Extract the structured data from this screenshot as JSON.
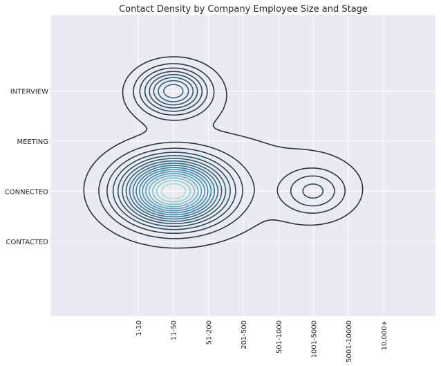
{
  "chart_data": {
    "type": "contour",
    "title": "Contact Density by Company Employee Size and Stage",
    "xlabel": "",
    "ylabel": "",
    "x_categories": [
      "1-10",
      "11-50",
      "51-200",
      "201-500",
      "501-1000",
      "1001-5000",
      "5001-10000",
      "10,000+"
    ],
    "y_categories": [
      "CONTACTED",
      "CONNECTED",
      "MEETING",
      "INTERVIEW"
    ],
    "grid": true,
    "background": "#eaeaf2",
    "colormap": [
      "#2b2f3a",
      "#2e5a70",
      "#3a8db3",
      "#a6dccb"
    ],
    "contour_levels": 17,
    "density_peaks": [
      {
        "x": "11-50",
        "y": "CONNECTED",
        "weight": 1.0
      },
      {
        "x": "11-50",
        "y": "INTERVIEW",
        "weight": 0.48
      },
      {
        "x": "1001-5000",
        "y": "CONNECTED",
        "weight": 0.2
      }
    ]
  }
}
